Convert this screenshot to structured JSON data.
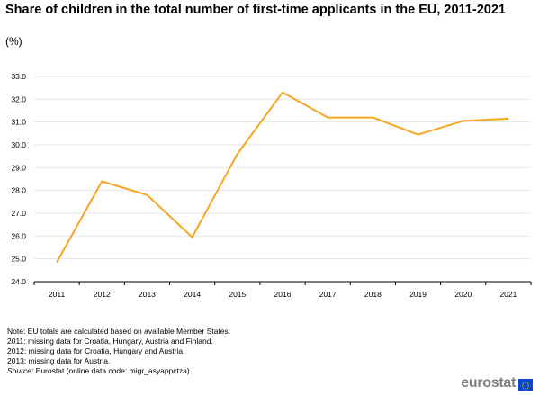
{
  "header": {
    "title": "Share of children in the total number of first-time applicants in the EU, 2011-2021",
    "subtitle": "(%)"
  },
  "colors": {
    "series": "#f5a623",
    "grid": "#e6e6e6",
    "axis": "#000000",
    "logo_text": "#7f7f7f",
    "flag": "#0e47cb"
  },
  "chart_data": {
    "type": "line",
    "title": "Share of children in the total number of first-time applicants in the EU, 2011-2021",
    "subtitle": "(%)",
    "x": [
      "2011",
      "2012",
      "2013",
      "2014",
      "2015",
      "2016",
      "2017",
      "2018",
      "2019",
      "2020",
      "2021"
    ],
    "series": [
      {
        "values": [
          24.85,
          28.4,
          27.8,
          25.95,
          29.6,
          32.3,
          31.2,
          31.2,
          30.45,
          31.05,
          31.15
        ]
      }
    ],
    "ylim": [
      24.0,
      33.0
    ],
    "yticks": [
      "24.0",
      "25.0",
      "26.0",
      "27.0",
      "28.0",
      "29.0",
      "30.0",
      "31.0",
      "32.0",
      "33.0"
    ],
    "grid": "horizontal",
    "legend": "none"
  },
  "notes": {
    "lines": [
      "Note: EU totals are calculated based on available Member States:",
      "2011: missing data for Croatia, Hungary, Austria and Finland.",
      "2012: missing data for Croatia, Hungary and Austria.",
      "2013: missing data for Austria."
    ],
    "source_label": "Source:",
    "source_text": " Eurostat (online data code: migr_asyappctza)"
  },
  "logo": {
    "text": "eurostat"
  }
}
